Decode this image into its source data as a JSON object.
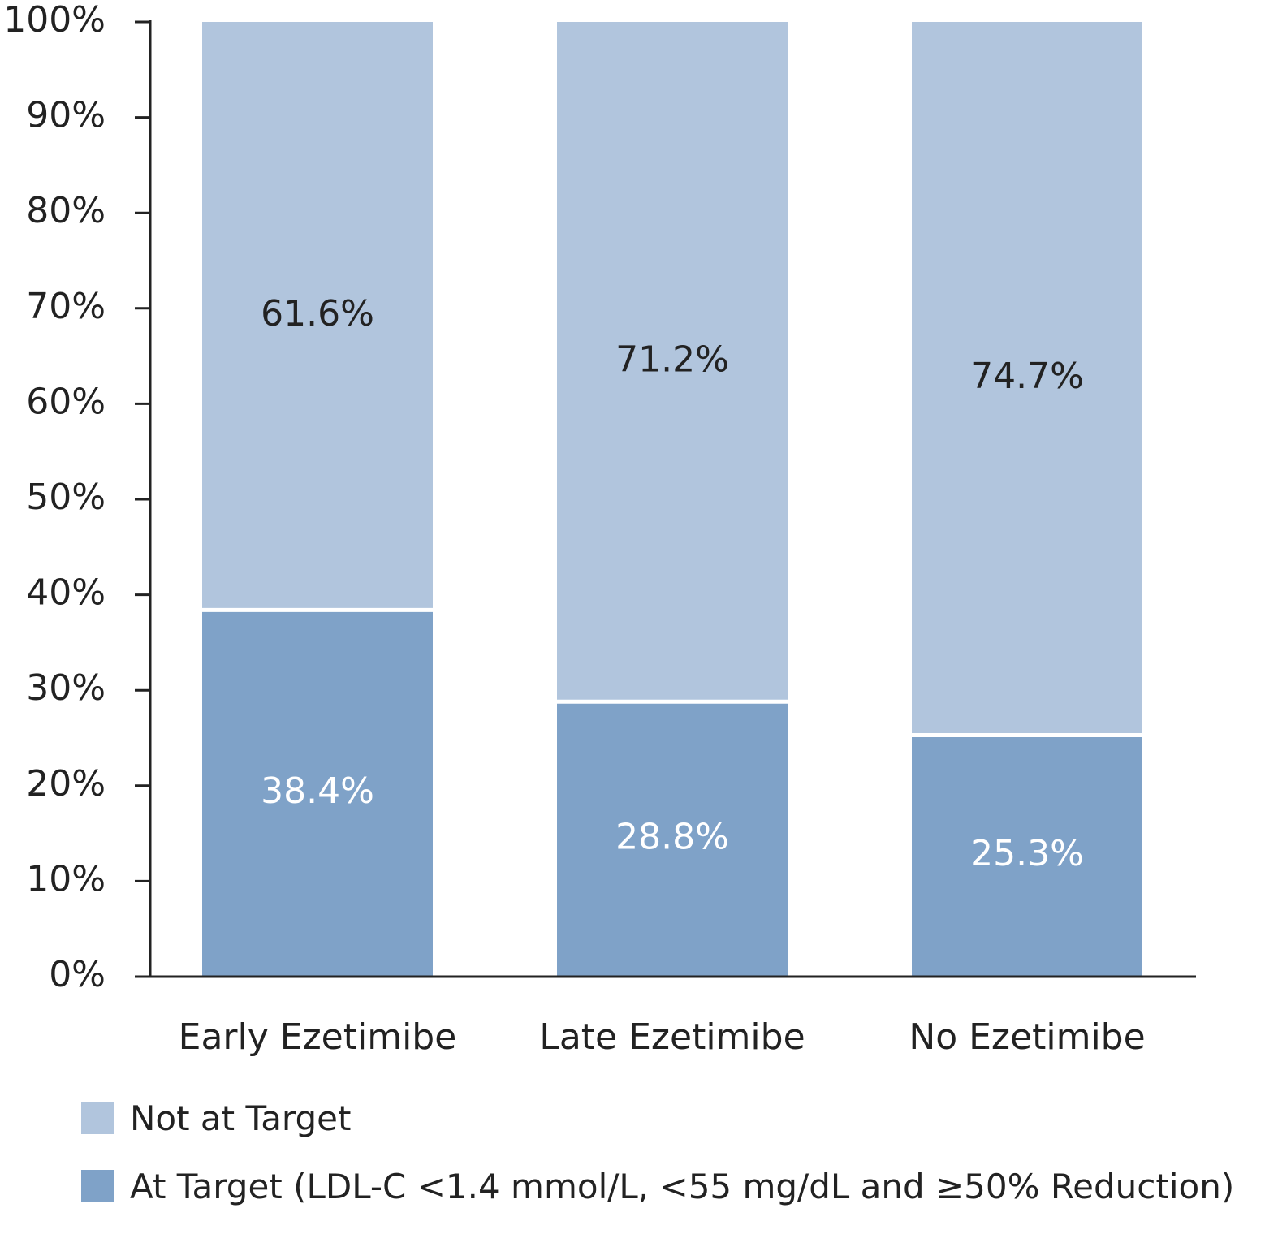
{
  "chart_data": {
    "type": "bar",
    "stacked": true,
    "categories": [
      "Early Ezetimibe",
      "Late Ezetimibe",
      "No Ezetimibe"
    ],
    "series": [
      {
        "name": "At Target (LDL-C <1.4 mmol/L, <55 mg/dL and ≥50% Reduction)",
        "values": [
          38.4,
          28.8,
          25.3
        ],
        "labels": [
          "38.4%",
          "28.8%",
          "25.3%"
        ],
        "color": "#7fa2c8"
      },
      {
        "name": "Not at Target",
        "values": [
          61.6,
          71.2,
          74.7
        ],
        "labels": [
          "61.6%",
          "71.2%",
          "74.7%"
        ],
        "color": "#b1c5dd"
      }
    ],
    "ylim": [
      0,
      100
    ],
    "yticks": [
      0,
      10,
      20,
      30,
      40,
      50,
      60,
      70,
      80,
      90,
      100
    ],
    "ytick_labels": [
      "0%",
      "10%",
      "20%",
      "30%",
      "40%",
      "50%",
      "60%",
      "70%",
      "80%",
      "90%",
      "100%"
    ],
    "title": "",
    "xlabel": "",
    "ylabel": "",
    "grid": false,
    "legend_position": "bottom-left",
    "legend": [
      {
        "label": "Not at Target",
        "color": "#b1c5dd"
      },
      {
        "label": "At Target (LDL-C <1.4 mmol/L, <55 mg/dL and ≥50% Reduction)",
        "color": "#7fa2c8"
      }
    ]
  }
}
